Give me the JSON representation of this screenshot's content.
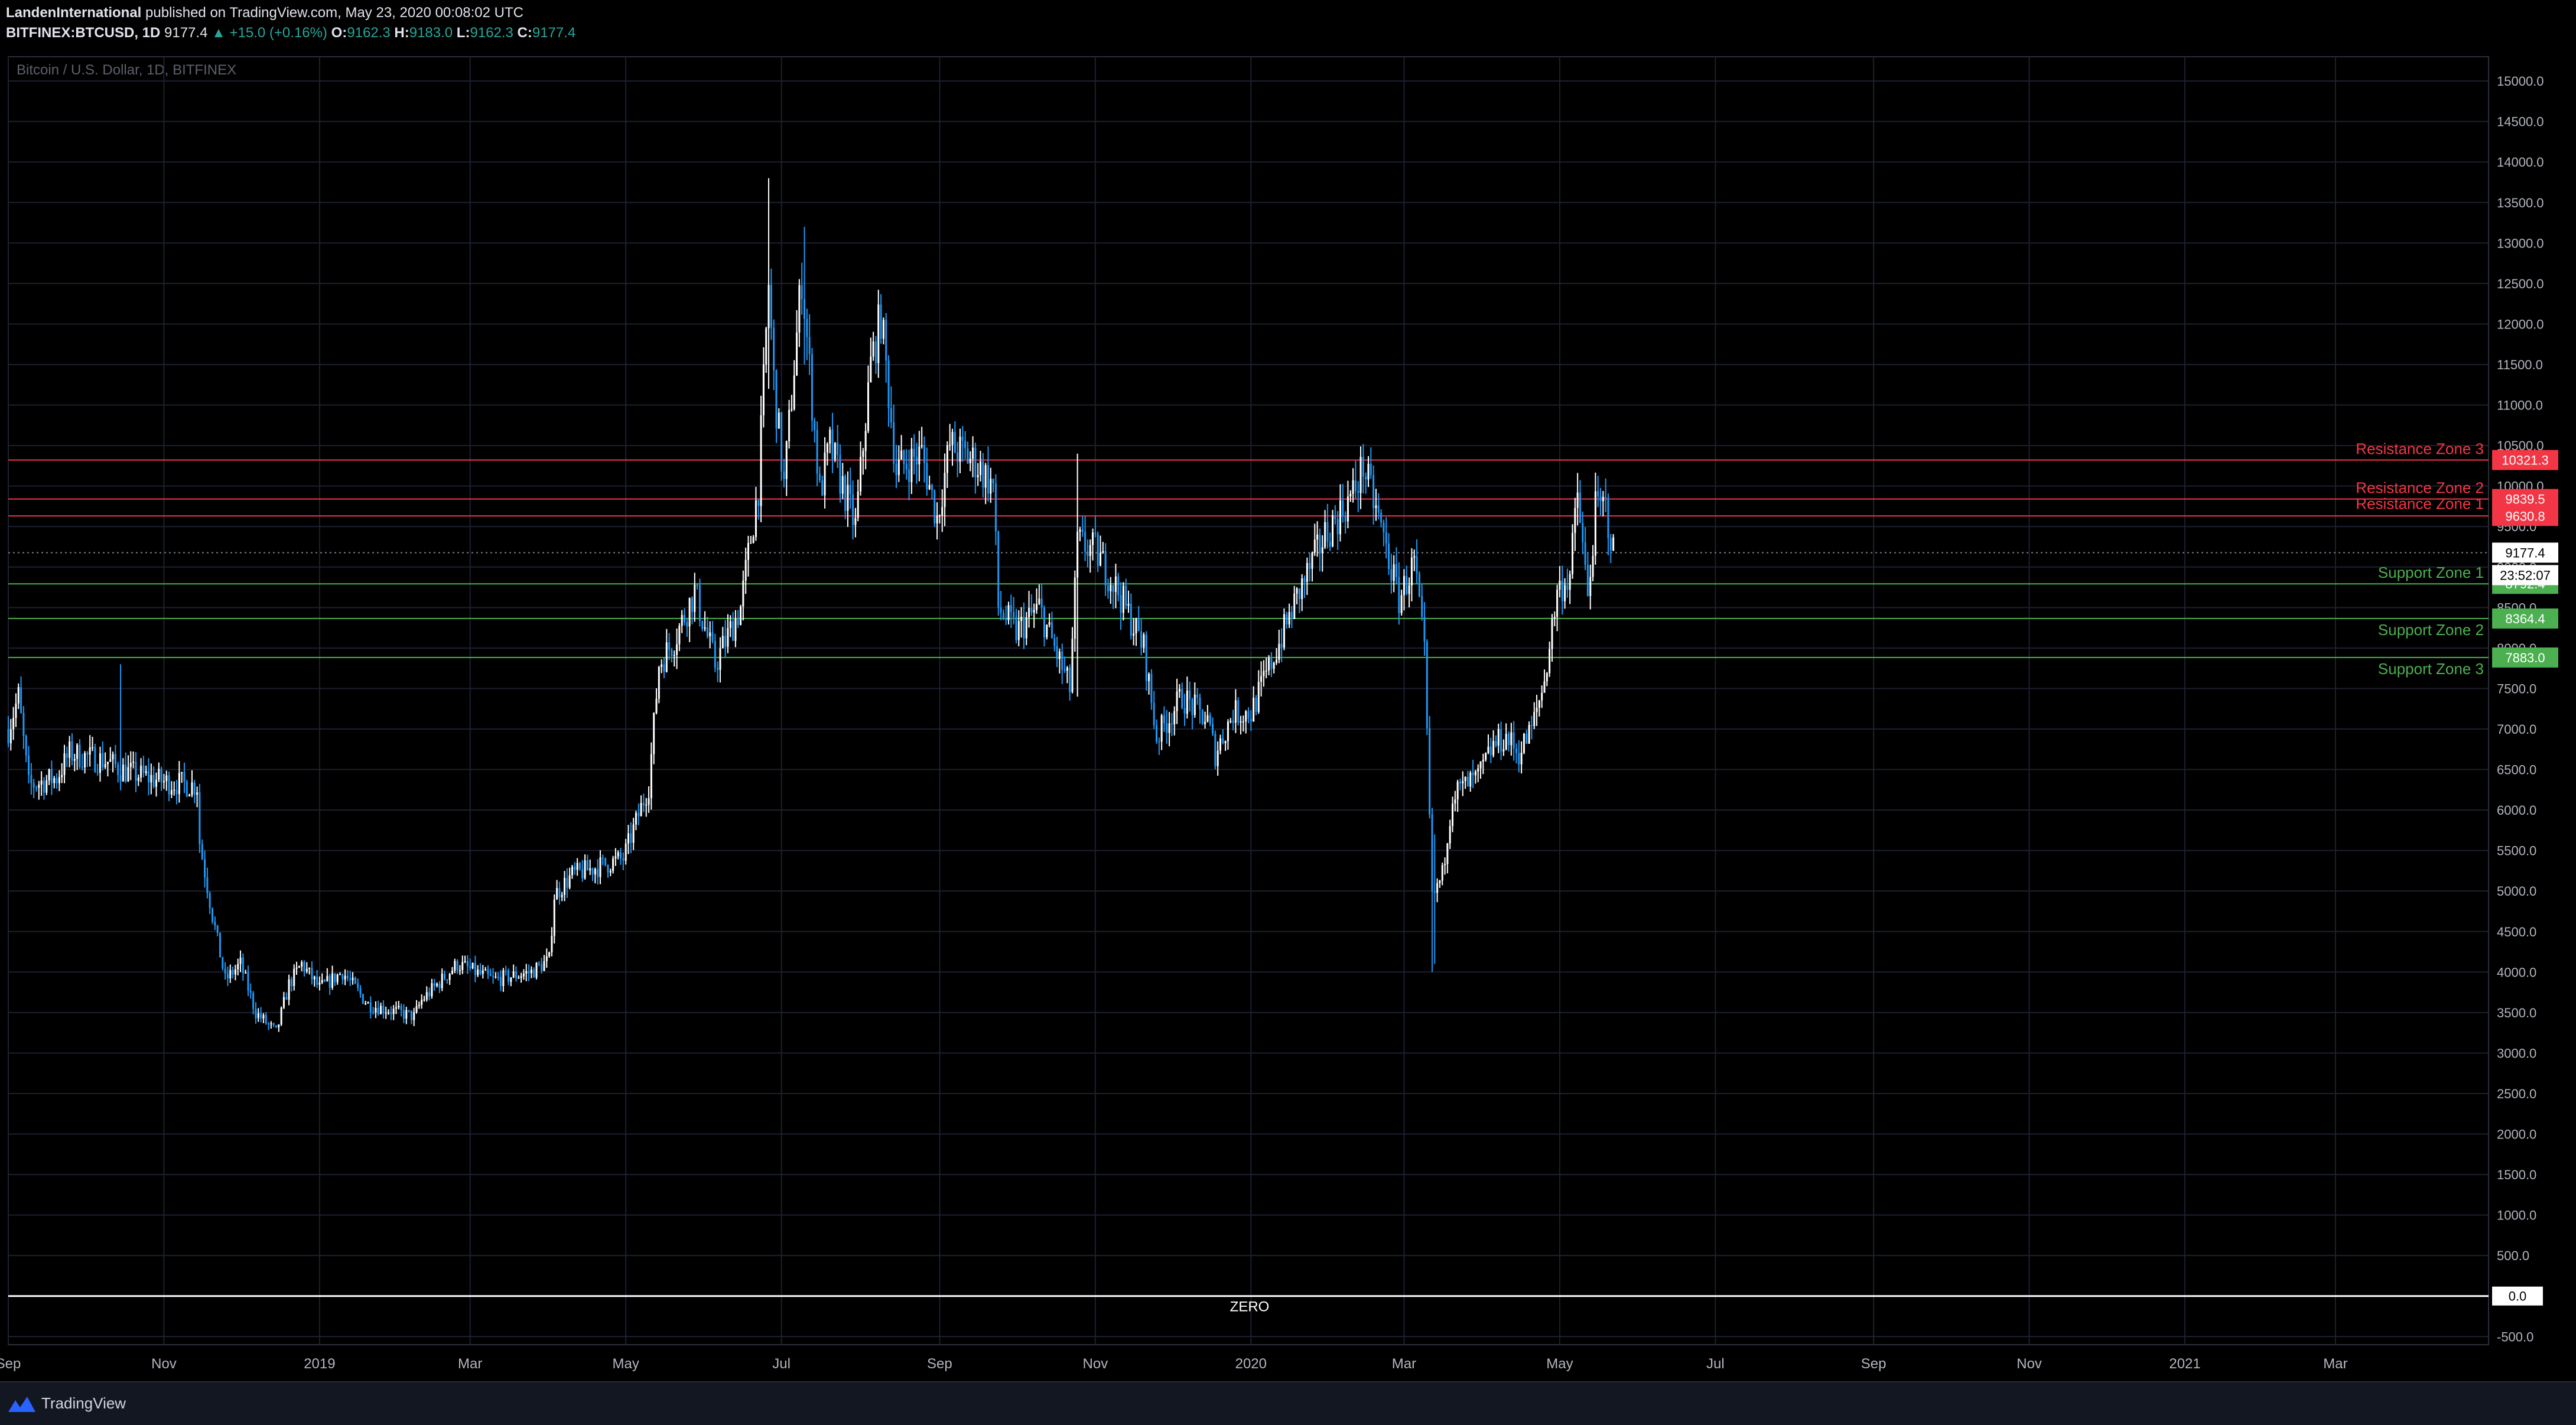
{
  "header": {
    "author": "LandenInternational",
    "published_text": "published on TradingView.com, May 23, 2020 00:08:02 UTC",
    "symbol": "BITFINEX:BTCUSD, 1D",
    "last": "9177.4",
    "change": "▲ +15.0 (+0.16%)",
    "o_label": "O:",
    "o": "9162.3",
    "h_label": "H:",
    "h": "9183.0",
    "l_label": "L:",
    "l": "9162.3",
    "c_label": "C:",
    "c": "9177.4"
  },
  "footer": {
    "brand": "TradingView"
  },
  "colors": {
    "up": "#ffffff",
    "down": "#2196f3",
    "resistance": "#f23645",
    "support": "#4caf50",
    "grid": "#1c2030",
    "axis_text": "#b2b5be"
  },
  "chart_data": {
    "type": "candlestick",
    "title": "Bitcoin / U.S. Dollar, 1D, BITFINEX",
    "ylim": [
      -600,
      15300
    ],
    "y_ticks": [
      -500,
      0,
      500,
      1000,
      1500,
      2000,
      2500,
      3000,
      3500,
      4000,
      4500,
      5000,
      5500,
      6000,
      6500,
      7000,
      7500,
      8000,
      8500,
      9000,
      9500,
      10000,
      10500,
      11000,
      11500,
      12000,
      12500,
      13000,
      13500,
      14000,
      14500,
      15000
    ],
    "y_tick_labels": [
      "-500.0",
      "0.0",
      "500.0",
      "1000.0",
      "1500.0",
      "2000.0",
      "2500.0",
      "3000.0",
      "3500.0",
      "4000.0",
      "4500.0",
      "5000.0",
      "5500.0",
      "6000.0",
      "6500.0",
      "7000.0",
      "7500.0",
      "8000.0",
      "8500.0",
      "9000.0",
      "9500.0",
      "10000.0",
      "10500.0",
      "11000.0",
      "11500.0",
      "12000.0",
      "12500.0",
      "13000.0",
      "13500.0",
      "14000.0",
      "14500.0",
      "15000.0"
    ],
    "x_range": [
      "2018-09-01",
      "2021-04-30"
    ],
    "x_ticks": [
      {
        "date": "2018-09-01",
        "label": "Sep"
      },
      {
        "date": "2018-11-01",
        "label": "Nov"
      },
      {
        "date": "2019-01-01",
        "label": "2019"
      },
      {
        "date": "2019-03-01",
        "label": "Mar"
      },
      {
        "date": "2019-05-01",
        "label": "May"
      },
      {
        "date": "2019-07-01",
        "label": "Jul"
      },
      {
        "date": "2019-09-01",
        "label": "Sep"
      },
      {
        "date": "2019-11-01",
        "label": "Nov"
      },
      {
        "date": "2020-01-01",
        "label": "2020"
      },
      {
        "date": "2020-03-01",
        "label": "Mar"
      },
      {
        "date": "2020-05-01",
        "label": "May"
      },
      {
        "date": "2020-07-01",
        "label": "Jul"
      },
      {
        "date": "2020-09-01",
        "label": "Sep"
      },
      {
        "date": "2020-11-01",
        "label": "Nov"
      },
      {
        "date": "2021-01-01",
        "label": "2021"
      },
      {
        "date": "2021-03-01",
        "label": "Mar"
      }
    ],
    "price_path": [
      [
        "2018-09-01",
        7000
      ],
      [
        "2018-09-05",
        7400
      ],
      [
        "2018-09-09",
        6300
      ],
      [
        "2018-09-20",
        6400
      ],
      [
        "2018-09-25",
        6700
      ],
      [
        "2018-10-10",
        6600
      ],
      [
        "2018-10-15",
        6500
      ],
      [
        "2018-10-20",
        6450
      ],
      [
        "2018-11-01",
        6350
      ],
      [
        "2018-11-14",
        6300
      ],
      [
        "2018-11-15",
        5600
      ],
      [
        "2018-11-20",
        4700
      ],
      [
        "2018-11-25",
        3900
      ],
      [
        "2018-12-01",
        4100
      ],
      [
        "2018-12-07",
        3500
      ],
      [
        "2018-12-15",
        3250
      ],
      [
        "2018-12-20",
        3850
      ],
      [
        "2018-12-25",
        4100
      ],
      [
        "2019-01-01",
        3800
      ],
      [
        "2019-01-10",
        4000
      ],
      [
        "2019-01-20",
        3600
      ],
      [
        "2019-02-01",
        3500
      ],
      [
        "2019-02-07",
        3450
      ],
      [
        "2019-02-10",
        3650
      ],
      [
        "2019-02-24",
        4100
      ],
      [
        "2019-03-10",
        3900
      ],
      [
        "2019-03-25",
        4000
      ],
      [
        "2019-04-01",
        4150
      ],
      [
        "2019-04-03",
        4950
      ],
      [
        "2019-04-10",
        5200
      ],
      [
        "2019-04-20",
        5300
      ],
      [
        "2019-04-30",
        5400
      ],
      [
        "2019-05-10",
        6300
      ],
      [
        "2019-05-14",
        7800
      ],
      [
        "2019-05-20",
        8100
      ],
      [
        "2019-05-28",
        8700
      ],
      [
        "2019-06-05",
        7800
      ],
      [
        "2019-06-15",
        8500
      ],
      [
        "2019-06-22",
        10000
      ],
      [
        "2019-06-26",
        12500
      ],
      [
        "2019-06-28",
        11300
      ],
      [
        "2019-07-02",
        10000
      ],
      [
        "2019-07-09",
        12600
      ],
      [
        "2019-07-16",
        9900
      ],
      [
        "2019-07-20",
        10500
      ],
      [
        "2019-07-30",
        9500
      ],
      [
        "2019-08-05",
        11500
      ],
      [
        "2019-08-09",
        12100
      ],
      [
        "2019-08-15",
        10200
      ],
      [
        "2019-08-25",
        10400
      ],
      [
        "2019-08-31",
        9600
      ],
      [
        "2019-09-05",
        10500
      ],
      [
        "2019-09-15",
        10300
      ],
      [
        "2019-09-22",
        10000
      ],
      [
        "2019-09-24",
        8500
      ],
      [
        "2019-10-01",
        8200
      ],
      [
        "2019-10-10",
        8500
      ],
      [
        "2019-10-22",
        7500
      ],
      [
        "2019-10-25",
        9300
      ],
      [
        "2019-11-01",
        9200
      ],
      [
        "2019-11-10",
        8700
      ],
      [
        "2019-11-20",
        8000
      ],
      [
        "2019-11-25",
        6900
      ],
      [
        "2019-12-05",
        7400
      ],
      [
        "2019-12-15",
        7100
      ],
      [
        "2019-12-18",
        6700
      ],
      [
        "2019-12-25",
        7200
      ],
      [
        "2020-01-01",
        7200
      ],
      [
        "2020-01-10",
        7900
      ],
      [
        "2020-01-20",
        8700
      ],
      [
        "2020-01-30",
        9400
      ],
      [
        "2020-02-10",
        9900
      ],
      [
        "2020-02-14",
        10250
      ],
      [
        "2020-02-20",
        9600
      ],
      [
        "2020-02-28",
        8600
      ],
      [
        "2020-03-05",
        9050
      ],
      [
        "2020-03-09",
        7900
      ],
      [
        "2020-03-12",
        4900
      ],
      [
        "2020-03-16",
        5200
      ],
      [
        "2020-03-20",
        6200
      ],
      [
        "2020-03-30",
        6400
      ],
      [
        "2020-04-05",
        6800
      ],
      [
        "2020-04-10",
        6900
      ],
      [
        "2020-04-15",
        6700
      ],
      [
        "2020-04-20",
        7000
      ],
      [
        "2020-04-25",
        7600
      ],
      [
        "2020-04-30",
        8700
      ],
      [
        "2020-05-05",
        8900
      ],
      [
        "2020-05-08",
        9900
      ],
      [
        "2020-05-12",
        8600
      ],
      [
        "2020-05-15",
        9700
      ],
      [
        "2020-05-19",
        9750
      ],
      [
        "2020-05-22",
        9177
      ]
    ],
    "spikes": [
      {
        "date": "2018-10-15",
        "high": 7800,
        "low": 6400
      },
      {
        "date": "2019-06-26",
        "high": 13800,
        "low": 11200
      },
      {
        "date": "2019-07-10",
        "high": 13200,
        "low": 11500
      },
      {
        "date": "2019-10-25",
        "high": 10400,
        "low": 7400
      },
      {
        "date": "2020-03-12",
        "high": 6000,
        "low": 4000
      },
      {
        "date": "2020-03-13",
        "high": 5700,
        "low": 4100
      }
    ],
    "horizontal_levels": [
      {
        "name": "Resistance Zone 3",
        "value": 10321.3,
        "value_label": "10321.3",
        "kind": "resistance"
      },
      {
        "name": "Resistance Zone 2",
        "value": 9839.5,
        "value_label": "9839.5",
        "kind": "resistance"
      },
      {
        "name": "Resistance Zone 1",
        "value": 9630.8,
        "value_label": "9630.8",
        "kind": "resistance"
      },
      {
        "name": "Support Zone 1",
        "value": 8792.4,
        "value_label": "8792.4",
        "kind": "support"
      },
      {
        "name": "Support Zone 2",
        "value": 8364.4,
        "value_label": "8364.4",
        "kind": "support"
      },
      {
        "name": "Support Zone 3",
        "value": 7883.0,
        "value_label": "7883.0",
        "kind": "support"
      },
      {
        "name": "ZERO",
        "value": 0,
        "value_label": "0.0",
        "kind": "zero"
      }
    ],
    "last_price": {
      "value": 9177.4,
      "label": "9177.4",
      "countdown": "23:52:07"
    }
  }
}
